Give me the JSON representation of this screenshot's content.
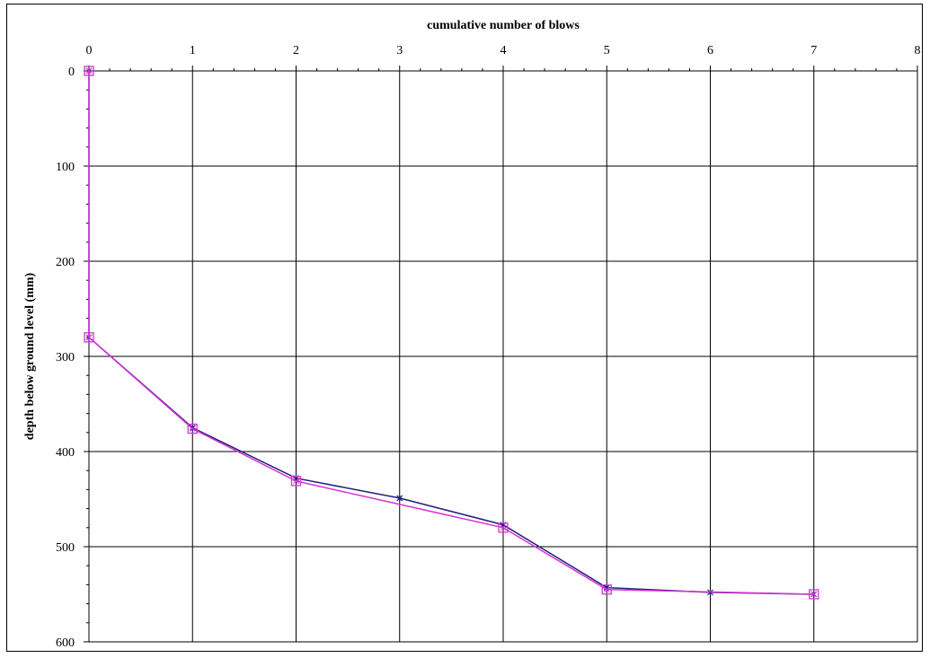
{
  "chart_data": {
    "type": "line",
    "title": "",
    "xlabel": "cumulative number of blows",
    "ylabel": "depth below ground level (mm)",
    "xlim": [
      0,
      8
    ],
    "ylim": [
      0,
      600
    ],
    "y_inverted": true,
    "x_axis_position": "top",
    "x_ticks": [
      "0",
      "1",
      "2",
      "3",
      "4",
      "5",
      "6",
      "7",
      "8"
    ],
    "y_ticks": [
      "0",
      "100",
      "200",
      "300",
      "400",
      "500",
      "600"
    ],
    "grid": true,
    "legend": "none",
    "series": [
      {
        "color": "#1f1f7a",
        "marker": "asterisk",
        "x": [
          0,
          0,
          1,
          2,
          3,
          4,
          5,
          6,
          7
        ],
        "y": [
          0,
          280,
          375,
          428,
          449,
          477,
          543,
          548,
          550
        ]
      },
      {
        "color": "#d633d6",
        "marker": "square-cross",
        "x": [
          0,
          0,
          1,
          2,
          4,
          5,
          7
        ],
        "y": [
          0,
          280,
          376,
          431,
          480,
          545,
          550
        ]
      }
    ]
  }
}
